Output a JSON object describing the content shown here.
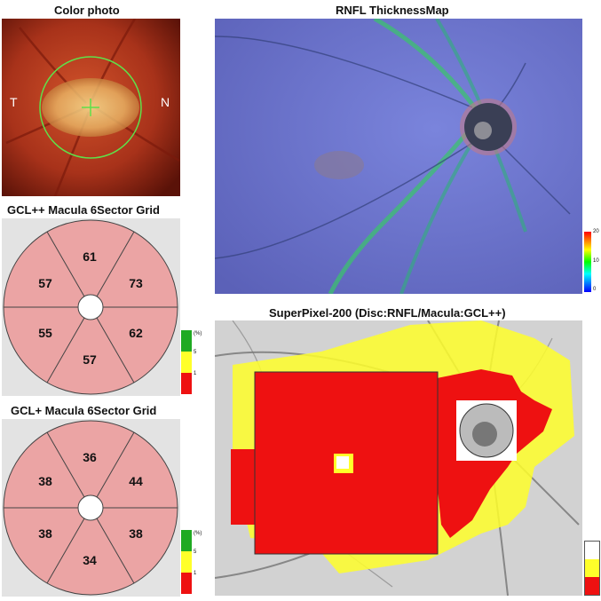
{
  "titles": {
    "color_photo": "Color photo",
    "rnfl_map": "RNFL ThicknessMap",
    "gcl_pp": "GCL++ Macula 6Sector Grid",
    "gcl_p": "GCL+ Macula 6Sector Grid",
    "superpixel": "SuperPixel-200 (Disc:RNFL/Macula:GCL++)"
  },
  "color_photo": {
    "left_label": "T",
    "right_label": "N"
  },
  "gcl_pp_grid": {
    "top": "61",
    "upper_nasal": "73",
    "lower_nasal": "62",
    "bottom": "57",
    "lower_temporal": "55",
    "upper_temporal": "57"
  },
  "gcl_p_grid": {
    "top": "36",
    "upper_nasal": "44",
    "lower_nasal": "38",
    "bottom": "34",
    "lower_temporal": "38",
    "upper_temporal": "38"
  },
  "grid_scale": {
    "unit": "(%)",
    "t1": "5",
    "t2": "1"
  },
  "rnfl_scale": {
    "max": "20",
    "mid": "10",
    "min": "0"
  },
  "colors": {
    "normal": "#1faa22",
    "borderline": "#ffff2a",
    "abnormal": "#ee1111",
    "sector_fill": "#eba4a4",
    "fundus": "#b2341c",
    "rnfl_bg": "#6a70c8"
  }
}
